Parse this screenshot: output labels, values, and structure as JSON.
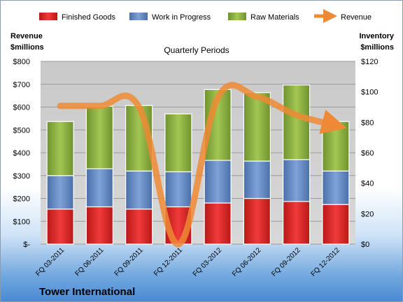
{
  "chart_data": {
    "type": "bar",
    "title": "Quarterly Periods",
    "company": "Tower International",
    "left_axis_label": [
      "Revenue",
      "$millions"
    ],
    "right_axis_label": [
      "Inventory",
      "$millions"
    ],
    "categories": [
      "FQ 03-2011",
      "FQ 06-2011",
      "FQ 09-2011",
      "FQ 12-2011",
      "FQ 03-2012",
      "FQ 06-2012",
      "FQ 09-2012",
      "FQ 12-2012"
    ],
    "series": [
      {
        "name": "Finished Goods",
        "axis": "right",
        "color": "#e02b2b",
        "values": [
          23,
          24.5,
          23,
          24.5,
          27,
          30,
          28,
          26
        ]
      },
      {
        "name": "Work in Progress",
        "axis": "right",
        "color": "#5d86c3",
        "values": [
          22,
          25,
          25,
          23,
          28,
          24.5,
          27.5,
          22
        ]
      },
      {
        "name": "Raw Materials",
        "axis": "right",
        "color": "#8db13f",
        "values": [
          35.5,
          41,
          43,
          38,
          46.5,
          45,
          49,
          32.5
        ]
      },
      {
        "name": "Revenue",
        "axis": "left",
        "type": "line",
        "color": "#ee8a35",
        "values": [
          605,
          605,
          600,
          0,
          640,
          645,
          565,
          520
        ]
      }
    ],
    "left_axis": {
      "ylim": [
        0,
        800
      ],
      "ticks": [
        "$-",
        "$100",
        "$200",
        "$300",
        "$400",
        "$500",
        "$600",
        "$700",
        "$800"
      ]
    },
    "right_axis": {
      "ylim": [
        0,
        120
      ],
      "ticks": [
        "$0",
        "$20",
        "$40",
        "$60",
        "$80",
        "$100",
        "$120"
      ]
    },
    "grid": true,
    "legend_position": "top"
  }
}
